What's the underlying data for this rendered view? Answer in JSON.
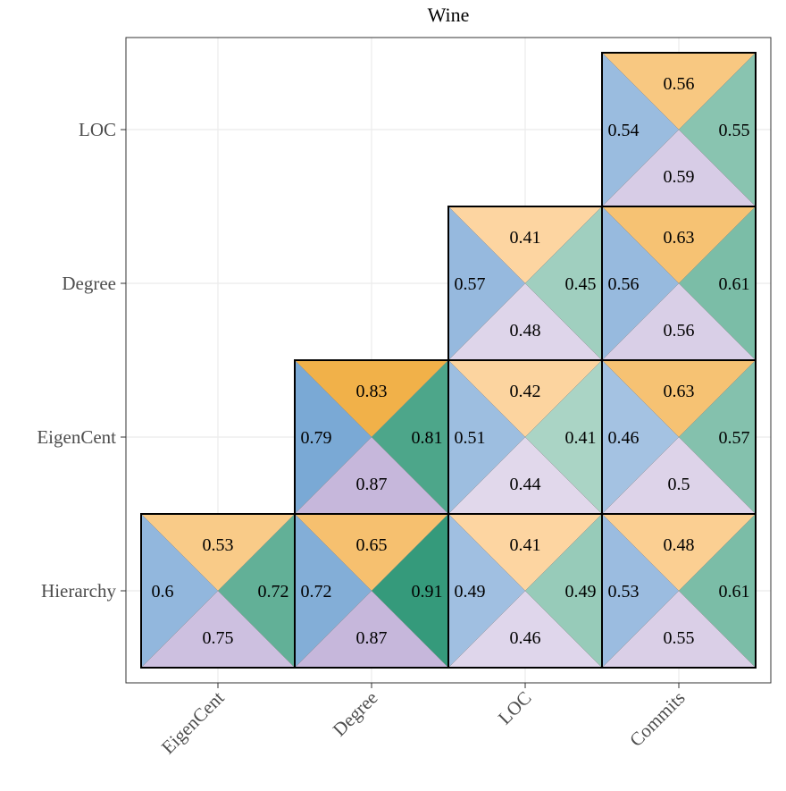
{
  "chart_data": {
    "type": "heatmap",
    "title": "Wine",
    "xlabel": "",
    "ylabel": "",
    "x_categories": [
      "EigenCent",
      "Degree",
      "LOC",
      "Commits"
    ],
    "y_categories": [
      "Hierarchy",
      "EigenCent",
      "Degree",
      "LOC"
    ],
    "grid": true,
    "triangle_colors": {
      "top": {
        "low": "#fdd6a3",
        "high": "#eea936"
      },
      "left": {
        "low": "#abc6e5",
        "high": "#6a9fcf"
      },
      "right": {
        "low": "#acd5c6",
        "high": "#33997a"
      },
      "bottom": {
        "low": "#e3dbed",
        "high": "#c3b3d9"
      }
    },
    "value_range": [
      0.4,
      0.92
    ],
    "cells": [
      {
        "x": "EigenCent",
        "y": "Hierarchy",
        "top": "0.53",
        "left": "0.6",
        "right": "0.72",
        "bottom": "0.75"
      },
      {
        "x": "Degree",
        "y": "Hierarchy",
        "top": "0.65",
        "left": "0.72",
        "right": "0.91",
        "bottom": "0.87"
      },
      {
        "x": "LOC",
        "y": "Hierarchy",
        "top": "0.41",
        "left": "0.49",
        "right": "0.49",
        "bottom": "0.46"
      },
      {
        "x": "Commits",
        "y": "Hierarchy",
        "top": "0.48",
        "left": "0.53",
        "right": "0.61",
        "bottom": "0.55"
      },
      {
        "x": "Degree",
        "y": "EigenCent",
        "top": "0.83",
        "left": "0.79",
        "right": "0.81",
        "bottom": "0.87"
      },
      {
        "x": "LOC",
        "y": "EigenCent",
        "top": "0.42",
        "left": "0.51",
        "right": "0.41",
        "bottom": "0.44"
      },
      {
        "x": "Commits",
        "y": "EigenCent",
        "top": "0.63",
        "left": "0.46",
        "right": "0.57",
        "bottom": "0.5"
      },
      {
        "x": "LOC",
        "y": "Degree",
        "top": "0.41",
        "left": "0.57",
        "right": "0.45",
        "bottom": "0.48"
      },
      {
        "x": "Commits",
        "y": "Degree",
        "top": "0.63",
        "left": "0.56",
        "right": "0.61",
        "bottom": "0.56"
      },
      {
        "x": "Commits",
        "y": "LOC",
        "top": "0.56",
        "left": "0.54",
        "right": "0.55",
        "bottom": "0.59"
      }
    ]
  }
}
